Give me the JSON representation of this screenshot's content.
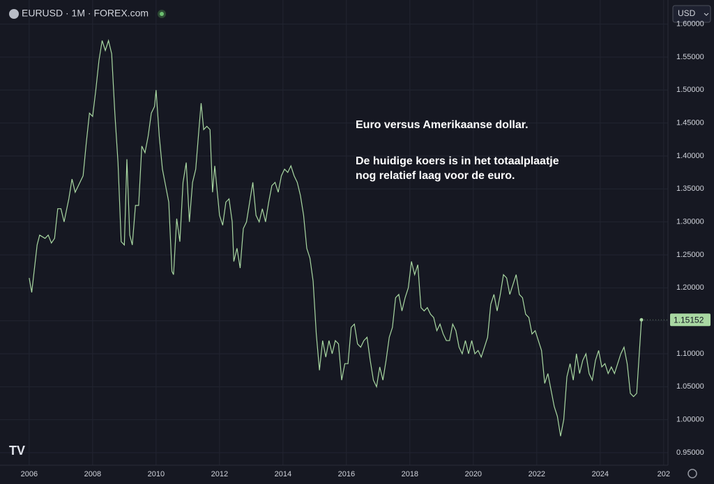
{
  "header": {
    "symbol": "EURUSD · 1M · FOREX.com",
    "currency": "USD"
  },
  "chart_data": {
    "type": "line",
    "annotations": [
      "Euro versus Amerikaanse dollar.",
      "De huidige koers is in het totaalplaatje",
      "nog relatief laag voor de euro."
    ],
    "series": [
      {
        "name": "EURUSD",
        "color": "#a9d8a2",
        "x": [
          2006.0,
          2006.08,
          2006.25,
          2006.33,
          2006.5,
          2006.6,
          2006.7,
          2006.8,
          2006.9,
          2007.0,
          2007.1,
          2007.25,
          2007.35,
          2007.45,
          2007.6,
          2007.7,
          2007.8,
          2007.9,
          2008.0,
          2008.1,
          2008.2,
          2008.3,
          2008.4,
          2008.5,
          2008.6,
          2008.7,
          2008.8,
          2008.9,
          2009.0,
          2009.08,
          2009.17,
          2009.25,
          2009.35,
          2009.45,
          2009.55,
          2009.65,
          2009.75,
          2009.85,
          2009.95,
          2010.0,
          2010.1,
          2010.2,
          2010.3,
          2010.4,
          2010.5,
          2010.55,
          2010.65,
          2010.75,
          2010.85,
          2010.95,
          2011.05,
          2011.15,
          2011.25,
          2011.35,
          2011.42,
          2011.5,
          2011.6,
          2011.7,
          2011.78,
          2011.85,
          2012.0,
          2012.1,
          2012.2,
          2012.3,
          2012.4,
          2012.45,
          2012.55,
          2012.65,
          2012.75,
          2012.85,
          2012.95,
          2013.05,
          2013.15,
          2013.25,
          2013.35,
          2013.45,
          2013.55,
          2013.65,
          2013.75,
          2013.85,
          2013.95,
          2014.05,
          2014.15,
          2014.25,
          2014.35,
          2014.45,
          2014.55,
          2014.65,
          2014.75,
          2014.85,
          2014.95,
          2015.05,
          2015.15,
          2015.25,
          2015.35,
          2015.45,
          2015.55,
          2015.65,
          2015.75,
          2015.85,
          2015.95,
          2016.05,
          2016.15,
          2016.25,
          2016.35,
          2016.45,
          2016.55,
          2016.65,
          2016.75,
          2016.85,
          2016.95,
          2017.05,
          2017.15,
          2017.25,
          2017.35,
          2017.45,
          2017.55,
          2017.65,
          2017.75,
          2017.85,
          2017.95,
          2018.05,
          2018.15,
          2018.25,
          2018.35,
          2018.45,
          2018.55,
          2018.65,
          2018.75,
          2018.85,
          2018.95,
          2019.05,
          2019.15,
          2019.25,
          2019.35,
          2019.45,
          2019.55,
          2019.65,
          2019.75,
          2019.85,
          2019.95,
          2020.05,
          2020.15,
          2020.25,
          2020.35,
          2020.45,
          2020.55,
          2020.65,
          2020.75,
          2020.85,
          2020.95,
          2021.05,
          2021.15,
          2021.25,
          2021.35,
          2021.45,
          2021.55,
          2021.65,
          2021.75,
          2021.85,
          2021.95,
          2022.05,
          2022.15,
          2022.25,
          2022.35,
          2022.45,
          2022.55,
          2022.65,
          2022.75,
          2022.85,
          2022.95,
          2023.05,
          2023.15,
          2023.25,
          2023.35,
          2023.45,
          2023.55,
          2023.65,
          2023.75,
          2023.85,
          2023.95,
          2024.05,
          2024.15,
          2024.25,
          2024.35,
          2024.45,
          2024.55,
          2024.65,
          2024.75,
          2024.85,
          2024.95,
          2025.05,
          2025.15,
          2025.3
        ],
        "values": [
          1.215,
          1.193,
          1.265,
          1.28,
          1.275,
          1.28,
          1.268,
          1.275,
          1.32,
          1.32,
          1.3,
          1.335,
          1.365,
          1.345,
          1.36,
          1.37,
          1.42,
          1.465,
          1.46,
          1.5,
          1.545,
          1.575,
          1.56,
          1.575,
          1.555,
          1.465,
          1.39,
          1.27,
          1.265,
          1.395,
          1.28,
          1.265,
          1.325,
          1.325,
          1.415,
          1.405,
          1.43,
          1.465,
          1.475,
          1.5,
          1.43,
          1.38,
          1.355,
          1.33,
          1.225,
          1.22,
          1.305,
          1.27,
          1.36,
          1.39,
          1.3,
          1.36,
          1.38,
          1.44,
          1.48,
          1.44,
          1.445,
          1.44,
          1.345,
          1.385,
          1.31,
          1.295,
          1.33,
          1.335,
          1.3,
          1.24,
          1.26,
          1.23,
          1.29,
          1.3,
          1.33,
          1.36,
          1.31,
          1.3,
          1.32,
          1.3,
          1.33,
          1.355,
          1.36,
          1.345,
          1.37,
          1.38,
          1.375,
          1.385,
          1.37,
          1.36,
          1.34,
          1.31,
          1.26,
          1.245,
          1.21,
          1.13,
          1.075,
          1.12,
          1.095,
          1.12,
          1.1,
          1.12,
          1.115,
          1.06,
          1.085,
          1.085,
          1.14,
          1.145,
          1.115,
          1.11,
          1.12,
          1.125,
          1.09,
          1.06,
          1.05,
          1.08,
          1.06,
          1.09,
          1.125,
          1.14,
          1.185,
          1.19,
          1.165,
          1.185,
          1.2,
          1.24,
          1.22,
          1.235,
          1.17,
          1.165,
          1.17,
          1.16,
          1.155,
          1.135,
          1.145,
          1.13,
          1.12,
          1.12,
          1.145,
          1.135,
          1.11,
          1.1,
          1.12,
          1.1,
          1.12,
          1.1,
          1.105,
          1.095,
          1.11,
          1.125,
          1.175,
          1.19,
          1.165,
          1.19,
          1.22,
          1.215,
          1.19,
          1.205,
          1.22,
          1.19,
          1.185,
          1.16,
          1.155,
          1.13,
          1.135,
          1.12,
          1.105,
          1.055,
          1.07,
          1.045,
          1.02,
          1.005,
          0.975,
          1.0,
          1.065,
          1.085,
          1.06,
          1.1,
          1.07,
          1.09,
          1.1,
          1.07,
          1.06,
          1.09,
          1.105,
          1.08,
          1.085,
          1.07,
          1.08,
          1.07,
          1.085,
          1.1,
          1.11,
          1.085,
          1.04,
          1.035,
          1.04,
          1.15152
        ]
      }
    ],
    "xlim": [
      2005.08,
      2026.07
    ],
    "xticks": [
      2006,
      2008,
      2010,
      2012,
      2014,
      2016,
      2018,
      2020,
      2022,
      2024,
      {
        "value": 2026,
        "label": "202"
      }
    ],
    "ylim": [
      0.931,
      1.626
    ],
    "yticks": [
      {
        "value": 0.95,
        "label": "0.95000"
      },
      {
        "value": 1.0,
        "label": "1.00000"
      },
      {
        "value": 1.05,
        "label": "1.05000"
      },
      {
        "value": 1.1,
        "label": "1.10000"
      },
      {
        "value": 1.15,
        "label": "1.15000"
      },
      {
        "value": 1.2,
        "label": "1.20000"
      },
      {
        "value": 1.25,
        "label": "1.25000"
      },
      {
        "value": 1.3,
        "label": "1.30000"
      },
      {
        "value": 1.35,
        "label": "1.35000"
      },
      {
        "value": 1.4,
        "label": "1.40000"
      },
      {
        "value": 1.45,
        "label": "1.45000"
      },
      {
        "value": 1.5,
        "label": "1.50000"
      },
      {
        "value": 1.55,
        "label": "1.55000"
      },
      {
        "value": 1.6,
        "label": "1.60000"
      }
    ],
    "grid": true
  }
}
